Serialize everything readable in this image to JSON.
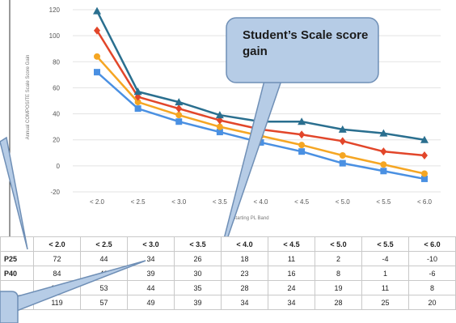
{
  "callout": "Student’s Scale score gain",
  "chart_data": {
    "type": "line",
    "ylabel": "Annual COMPOSITE Scale Score Gain",
    "xlabel": "Starting PL Band",
    "categories": [
      "< 2.0",
      "< 2.5",
      "< 3.0",
      "< 3.5",
      "< 4.0",
      "< 4.5",
      "< 5.0",
      "< 5.5",
      "< 6.0"
    ],
    "ylim": [
      -20,
      120
    ],
    "yticks": [
      "120",
      "100",
      "80",
      "60",
      "40",
      "20",
      "0",
      "-20"
    ],
    "grid": true,
    "series": [
      {
        "name": "P25",
        "color": "#4a90e2",
        "marker": "square",
        "values": [
          72,
          44,
          34,
          26,
          18,
          11,
          2,
          -4,
          -10
        ]
      },
      {
        "name": "P40",
        "color": "#f5a623",
        "marker": "circle",
        "values": [
          84,
          49,
          39,
          30,
          23,
          16,
          8,
          1,
          -6
        ]
      },
      {
        "name": "",
        "color": "#e2462a",
        "marker": "diamond",
        "values": [
          104,
          53,
          44,
          35,
          28,
          24,
          19,
          11,
          8
        ]
      },
      {
        "name": "",
        "color": "#2a6f8f",
        "marker": "triangle",
        "values": [
          119,
          57,
          49,
          39,
          34,
          34,
          28,
          25,
          20
        ]
      }
    ]
  },
  "table": {
    "header": [
      "",
      "< 2.0",
      "< 2.5",
      "< 3.0",
      "< 3.5",
      "< 4.0",
      "< 4.5",
      "< 5.0",
      "< 5.5",
      "< 6.0"
    ],
    "rows": [
      [
        "P25",
        "72",
        "44",
        "34",
        "26",
        "18",
        "11",
        "2",
        "-4",
        "-10"
      ],
      [
        "P40",
        "84",
        "49",
        "39",
        "30",
        "23",
        "16",
        "8",
        "1",
        "-6"
      ],
      [
        "",
        "104",
        "53",
        "44",
        "35",
        "28",
        "24",
        "19",
        "11",
        "8"
      ],
      [
        "",
        "119",
        "57",
        "49",
        "39",
        "34",
        "34",
        "28",
        "25",
        "20"
      ]
    ]
  }
}
